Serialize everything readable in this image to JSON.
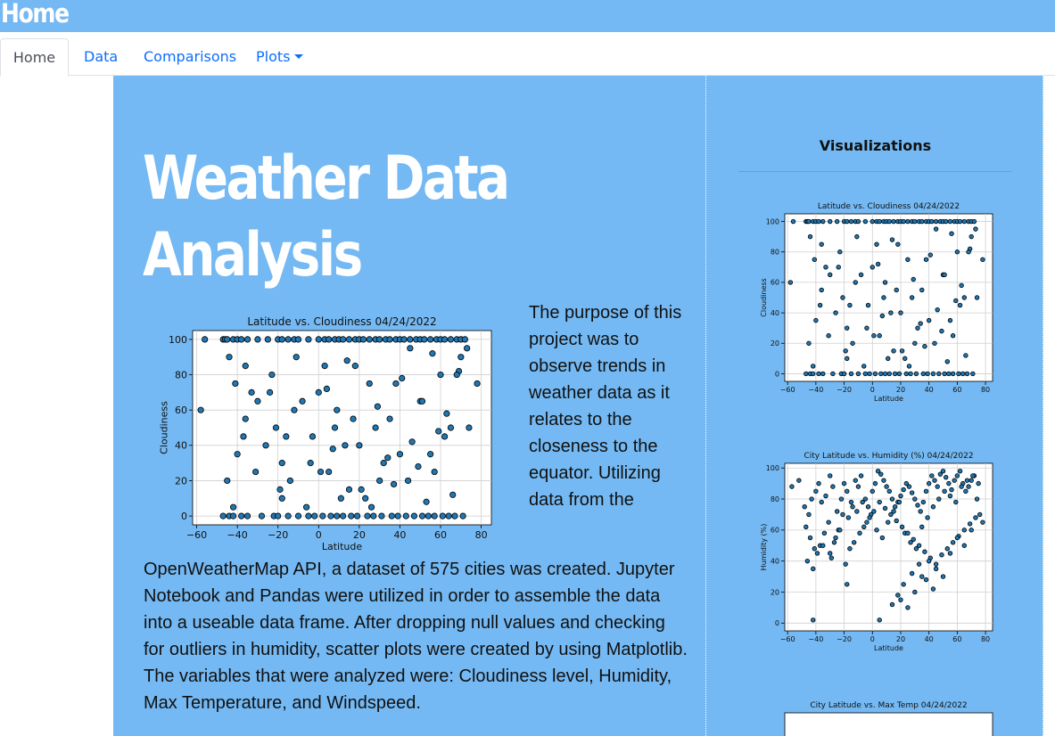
{
  "topbar": {
    "title": "Home"
  },
  "nav": {
    "tabs": [
      {
        "label": "Home"
      },
      {
        "label": "Data"
      },
      {
        "label": "Comparisons"
      },
      {
        "label": "Plots"
      }
    ]
  },
  "main": {
    "headline_line1": "Weather Data",
    "headline_line2": "Analysis",
    "para_right": "The purpose of this project was to observe trends in weather data as it relates to the closeness to the equator. Utilizing data from the",
    "para_bottom": "OpenWeatherMap API, a dataset of 575 cities was created. Jupyter Notebook and Pandas were utilized in order to assemble the data into a useable data frame. After dropping null values and checking for outliers in humidity, scatter plots were created by using Matplotlib. The variables that were analyzed were: Cloudiness level, Humidity, Max Temperature, and Windspeed."
  },
  "sidebar": {
    "title": "Visualizations"
  },
  "colors": {
    "header": "#74b9f3",
    "link": "#0d6efd",
    "point": "#1f77b4"
  },
  "chart_data": [
    {
      "type": "scatter",
      "title": "Latitude vs. Cloudiness 04/24/2022",
      "xlabel": "Latitude",
      "ylabel": "Cloudiness",
      "xlim": [
        -62,
        85
      ],
      "ylim": [
        -5,
        105
      ],
      "xticks": [
        -60,
        -40,
        -20,
        0,
        20,
        40,
        60,
        80
      ],
      "yticks": [
        0,
        20,
        40,
        60,
        80,
        100
      ],
      "grid": true,
      "points_x": [
        -56,
        -47,
        -46,
        -45,
        -42,
        -40,
        -38,
        -35,
        -30,
        -25,
        -20,
        -18,
        -15,
        -12,
        -10,
        -5,
        0,
        3,
        5,
        8,
        10,
        12,
        15,
        18,
        20,
        22,
        25,
        28,
        30,
        33,
        35,
        38,
        40,
        42,
        45,
        48,
        50,
        52,
        55,
        58,
        60,
        62,
        65,
        68,
        70,
        72,
        -47,
        -44,
        -42,
        -38,
        -35,
        -28,
        -22,
        -20,
        -15,
        -10,
        -5,
        -2,
        2,
        6,
        9,
        12,
        16,
        19,
        24,
        27,
        31,
        36,
        39,
        43,
        47,
        51,
        54,
        57,
        61,
        64,
        67,
        71,
        -58,
        -44,
        -41,
        -36,
        -33,
        -26,
        -21,
        -18,
        -14,
        -8,
        -3,
        1,
        4,
        7,
        11,
        14,
        17,
        21,
        26,
        29,
        34,
        37,
        41,
        46,
        49,
        53,
        56,
        59,
        63,
        66,
        69,
        73,
        78,
        -45,
        -40,
        -36,
        -30,
        -23,
        -19,
        -16,
        -11,
        -6,
        0,
        5,
        9,
        13,
        18,
        23,
        28,
        32,
        38,
        44,
        50,
        55,
        60,
        65,
        70,
        -42,
        -37,
        -31,
        -24,
        -18,
        -12,
        -4,
        3,
        8,
        15,
        20,
        25,
        30,
        35,
        40,
        45,
        51,
        57,
        62,
        68,
        74
      ],
      "points_y": [
        100,
        100,
        100,
        100,
        100,
        100,
        100,
        100,
        100,
        100,
        100,
        100,
        100,
        100,
        100,
        100,
        100,
        100,
        100,
        100,
        100,
        100,
        100,
        100,
        100,
        100,
        100,
        100,
        100,
        100,
        100,
        100,
        100,
        100,
        100,
        100,
        100,
        100,
        100,
        100,
        100,
        100,
        100,
        100,
        100,
        100,
        0,
        0,
        0,
        0,
        0,
        0,
        0,
        0,
        0,
        0,
        0,
        0,
        0,
        0,
        0,
        0,
        0,
        0,
        0,
        0,
        0,
        0,
        0,
        0,
        0,
        0,
        0,
        0,
        0,
        0,
        0,
        0,
        60,
        90,
        75,
        85,
        70,
        40,
        50,
        30,
        20,
        65,
        45,
        25,
        72,
        38,
        10,
        88,
        55,
        15,
        5,
        62,
        33,
        18,
        78,
        42,
        28,
        8,
        92,
        48,
        58,
        12,
        82,
        95,
        75,
        20,
        35,
        55,
        65,
        80,
        15,
        45,
        90,
        5,
        70,
        25,
        60,
        40,
        85,
        10,
        50,
        30,
        75,
        20,
        65,
        35,
        80,
        50,
        90,
        5,
        45,
        25,
        70,
        10,
        60,
        30,
        85,
        50,
        15,
        40,
        75,
        20,
        55,
        35,
        95,
        65,
        25,
        45,
        80,
        50
      ]
    },
    {
      "type": "scatter",
      "title": "Latitude vs. Cloudiness 04/24/2022",
      "xlabel": "Latitude",
      "ylabel": "Cloudiness",
      "xlim": [
        -62,
        85
      ],
      "ylim": [
        -5,
        105
      ],
      "xticks": [
        -60,
        -40,
        -20,
        0,
        20,
        40,
        60,
        80
      ],
      "yticks": [
        0,
        20,
        40,
        60,
        80,
        100
      ],
      "grid": true,
      "same_as_first": true
    },
    {
      "type": "scatter",
      "title": "City Latitude vs. Humidity (%) 04/24/2022",
      "xlabel": "Latitude",
      "ylabel": "Humidity (%)",
      "xlim": [
        -62,
        85
      ],
      "ylim": [
        -5,
        103
      ],
      "xticks": [
        -60,
        -40,
        -20,
        0,
        20,
        40,
        60,
        80
      ],
      "yticks": [
        0,
        20,
        40,
        60,
        80,
        100
      ],
      "grid": true,
      "points_x": [
        -57,
        -52,
        -48,
        -45,
        -43,
        -40,
        -38,
        -36,
        -33,
        -30,
        -28,
        -25,
        -22,
        -20,
        -18,
        -15,
        -12,
        -10,
        -8,
        -5,
        -3,
        0,
        2,
        4,
        6,
        8,
        10,
        12,
        14,
        16,
        18,
        20,
        22,
        24,
        26,
        28,
        30,
        32,
        34,
        36,
        38,
        40,
        42,
        44,
        46,
        48,
        50,
        52,
        54,
        56,
        58,
        60,
        62,
        64,
        66,
        68,
        70,
        72,
        74,
        76,
        78,
        -47,
        -44,
        -41,
        -37,
        -34,
        -31,
        -27,
        -24,
        -21,
        -17,
        -14,
        -11,
        -7,
        -4,
        -1,
        3,
        7,
        11,
        15,
        19,
        23,
        27,
        31,
        35,
        39,
        43,
        47,
        51,
        55,
        59,
        63,
        67,
        71,
        75,
        -46,
        -42,
        -39,
        -35,
        -29,
        -26,
        -23,
        -19,
        -16,
        -13,
        -9,
        -6,
        -2,
        1,
        5,
        9,
        13,
        17,
        21,
        25,
        29,
        33,
        37,
        41,
        45,
        49,
        53,
        57,
        61,
        65,
        69,
        73,
        -42,
        -30,
        -18,
        5,
        20,
        25,
        30,
        35,
        40,
        45,
        50,
        55,
        60,
        65,
        70,
        14,
        18,
        22,
        28,
        33,
        38,
        43
      ],
      "points_y": [
        88,
        92,
        75,
        70,
        80,
        85,
        90,
        78,
        82,
        95,
        88,
        72,
        80,
        90,
        85,
        78,
        92,
        88,
        95,
        80,
        75,
        85,
        90,
        98,
        96,
        92,
        88,
        85,
        80,
        75,
        78,
        82,
        86,
        90,
        88,
        84,
        80,
        76,
        72,
        78,
        85,
        90,
        95,
        92,
        88,
        96,
        98,
        94,
        90,
        86,
        92,
        95,
        98,
        90,
        85,
        88,
        92,
        95,
        80,
        70,
        65,
        62,
        55,
        48,
        50,
        58,
        65,
        52,
        60,
        70,
        68,
        75,
        72,
        78,
        65,
        70,
        60,
        55,
        65,
        72,
        78,
        58,
        52,
        48,
        62,
        68,
        75,
        80,
        85,
        82,
        78,
        88,
        92,
        95,
        90,
        40,
        35,
        45,
        50,
        42,
        55,
        60,
        38,
        48,
        52,
        58,
        62,
        68,
        72,
        78,
        74,
        70,
        66,
        62,
        58,
        54,
        50,
        46,
        42,
        38,
        44,
        48,
        52,
        56,
        60,
        64,
        68,
        2,
        45,
        25,
        2,
        15,
        10,
        20,
        30,
        40,
        35,
        30,
        45,
        55,
        50,
        60,
        12,
        18,
        25,
        32,
        38,
        28,
        22
      ]
    },
    {
      "type": "scatter",
      "title": "City Latitude vs. Max Temp 04/24/2022",
      "partial": true
    }
  ]
}
